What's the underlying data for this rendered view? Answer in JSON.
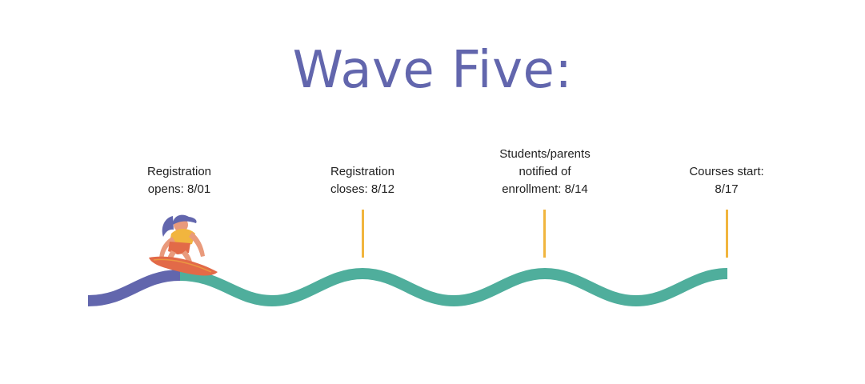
{
  "title": "Wave Five:",
  "colors": {
    "title": "#6266ad",
    "wave_done": "#6266ad",
    "wave_ahead": "#4fae9c",
    "marker": "#f1b53e",
    "text": "#222222"
  },
  "milestones": [
    {
      "lines": [
        "Registration",
        "opens: 8/01"
      ]
    },
    {
      "lines": [
        "Registration",
        "closes: 8/12"
      ]
    },
    {
      "lines": [
        "Students/parents",
        "notified of",
        "enrollment: 8/14"
      ]
    },
    {
      "lines": [
        "Courses start:",
        "8/17"
      ]
    }
  ],
  "surfer": {
    "icon": "surfer-icon"
  }
}
